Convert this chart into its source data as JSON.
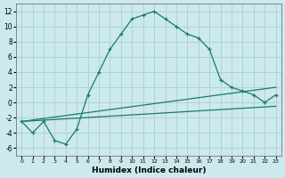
{
  "xlabel": "Humidex (Indice chaleur)",
  "background_color": "#cce9ed",
  "grid_color": "#aacfd4",
  "line_color": "#1a7a6e",
  "xlim": [
    -0.5,
    23.5
  ],
  "ylim": [
    -7,
    13
  ],
  "xticks": [
    0,
    1,
    2,
    3,
    4,
    5,
    6,
    7,
    8,
    9,
    10,
    11,
    12,
    13,
    14,
    15,
    16,
    17,
    18,
    19,
    20,
    21,
    22,
    23
  ],
  "yticks": [
    -6,
    -4,
    -2,
    0,
    2,
    4,
    6,
    8,
    10,
    12
  ],
  "line1_x": [
    0,
    1,
    2,
    3,
    4,
    5,
    6,
    7,
    8,
    9,
    10,
    11,
    12,
    13,
    14,
    15,
    16,
    17,
    18,
    19,
    20,
    21,
    22,
    23
  ],
  "line1_y": [
    -2.5,
    -4.0,
    -2.5,
    -5.0,
    -5.5,
    -3.5,
    1.0,
    4.0,
    7.0,
    9.0,
    11.0,
    11.5,
    12.0,
    11.0,
    10.0,
    9.0,
    8.5,
    7.0,
    3.0,
    2.0,
    1.5,
    1.0,
    0.0,
    1.0
  ],
  "line2_x": [
    0,
    23
  ],
  "line2_y": [
    -2.5,
    2.0
  ],
  "line3_x": [
    0,
    23
  ],
  "line3_y": [
    -2.5,
    -0.5
  ]
}
